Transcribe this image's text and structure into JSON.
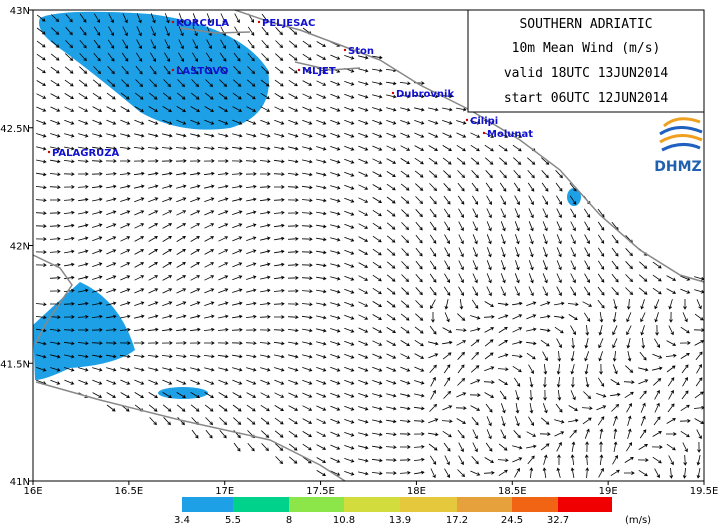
{
  "header": {
    "lines": [
      "SOUTHERN ADRIATIC",
      "10m Mean Wind (m/s)",
      "valid 18UTC 13JUN2014",
      "start 06UTC 12JUN2014"
    ]
  },
  "logo": {
    "text": "DHMZ"
  },
  "axes": {
    "x_labels": [
      "16E",
      "16.5E",
      "17E",
      "17.5E",
      "18E",
      "18.5E",
      "19E",
      "19.5E"
    ],
    "y_labels": [
      "43N",
      "42.5N",
      "42N",
      "41.5N",
      "41N"
    ]
  },
  "places": [
    {
      "label": "KORCULA"
    },
    {
      "label": "PELJESAC"
    },
    {
      "label": "Ston"
    },
    {
      "label": "MLJET"
    },
    {
      "label": "LASTOVO"
    },
    {
      "label": "Dubrovnik"
    },
    {
      "label": "Cilipi"
    },
    {
      "label": "Molunat"
    },
    {
      "label": "PALAGRUZA"
    }
  ],
  "legend": {
    "values": [
      3.4,
      5.5,
      8,
      10.8,
      13.9,
      17.2,
      24.5,
      32.7
    ],
    "unit": "(m/s)"
  }
}
